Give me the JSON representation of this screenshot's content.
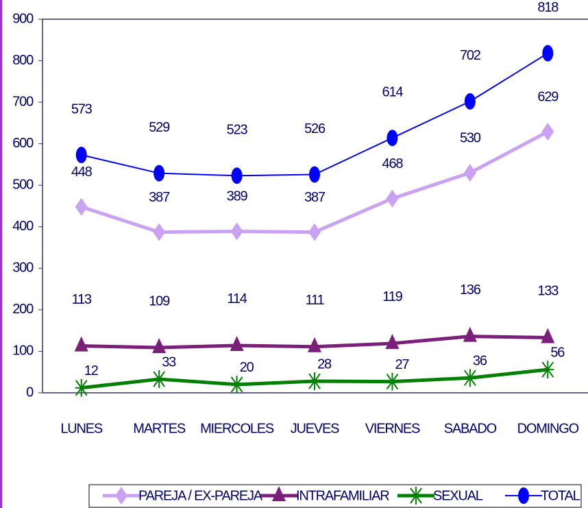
{
  "chart_data": {
    "type": "line",
    "categories": [
      "LUNES",
      "MARTES",
      "MIERCOLES",
      "JUEVES",
      "VIERNES",
      "SABADO",
      "DOMINGO"
    ],
    "series": [
      {
        "name": "PAREJA / EX-PAREJA",
        "color": "#c9a3f2",
        "marker": "diamond",
        "values": [
          448,
          387,
          389,
          387,
          468,
          530,
          629
        ]
      },
      {
        "name": "INTRAFAMILIAR",
        "color": "#7a1f7a",
        "marker": "triangle",
        "values": [
          113,
          109,
          114,
          111,
          119,
          136,
          133
        ]
      },
      {
        "name": "SEXUAL",
        "color": "#008000",
        "marker": "asterisk",
        "values": [
          12,
          33,
          20,
          28,
          27,
          36,
          56
        ]
      },
      {
        "name": "TOTAL",
        "color": "#0000ff",
        "marker": "circle",
        "values": [
          573,
          529,
          523,
          526,
          614,
          702,
          818
        ]
      }
    ],
    "ylim": [
      0,
      900
    ],
    "yticks": [
      0,
      100,
      200,
      300,
      400,
      500,
      600,
      700,
      800,
      900
    ],
    "legend": "bottom"
  }
}
